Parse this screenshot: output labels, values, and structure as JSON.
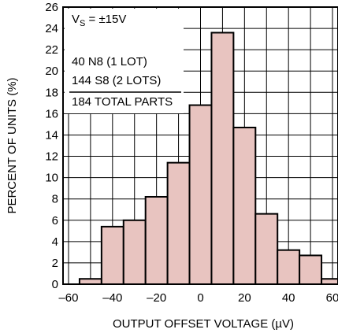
{
  "chart_data": {
    "type": "bar",
    "title": "",
    "xlabel": "OUTPUT OFFSET VOLTAGE (µV)",
    "ylabel": "PERCENT OF UNITS (%)",
    "xlim": [
      -62.5,
      62.5
    ],
    "ylim": [
      0,
      26
    ],
    "xticks": [
      -60,
      -40,
      -20,
      0,
      20,
      40,
      60
    ],
    "xtick_labels": [
      "–60",
      "–40",
      "–20",
      "0",
      "20",
      "40",
      "60"
    ],
    "yticks": [
      0,
      2,
      4,
      6,
      8,
      10,
      12,
      14,
      16,
      18,
      20,
      22,
      24,
      26
    ],
    "grid": true,
    "bar_color": "#e8c4c0",
    "bin_width": 10,
    "bins": [
      {
        "x0": -55,
        "x1": -45,
        "value": 0.5
      },
      {
        "x0": -45,
        "x1": -35,
        "value": 5.4
      },
      {
        "x0": -35,
        "x1": -25,
        "value": 6.0
      },
      {
        "x0": -25,
        "x1": -15,
        "value": 8.2
      },
      {
        "x0": -15,
        "x1": -5,
        "value": 11.4
      },
      {
        "x0": -5,
        "x1": 5,
        "value": 16.8
      },
      {
        "x0": 5,
        "x1": 15,
        "value": 23.6
      },
      {
        "x0": 15,
        "x1": 25,
        "value": 14.7
      },
      {
        "x0": 25,
        "x1": 35,
        "value": 6.6
      },
      {
        "x0": 35,
        "x1": 45,
        "value": 3.2
      },
      {
        "x0": 45,
        "x1": 55,
        "value": 2.7
      },
      {
        "x0": 55,
        "x1": 62.5,
        "value": 0.5
      }
    ],
    "annotations": {
      "supply_prefix": "V",
      "supply_sub": "S",
      "supply_suffix": " = ±15V",
      "lines": [
        "40 N8 (1 LOT)",
        "144 S8 (2 LOTS)",
        "184 TOTAL PARTS"
      ]
    }
  }
}
